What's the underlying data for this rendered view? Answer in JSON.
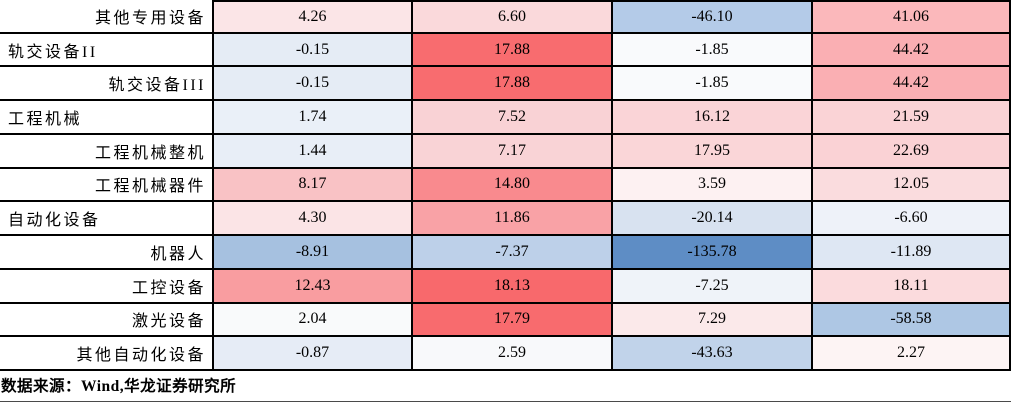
{
  "source_note": "数据来源：Wind,华龙证券研究所",
  "palette": {
    "strong_red": "#F8696C",
    "strong_blue": "#5E8DC5",
    "near_white": "#FCFCFF",
    "border": "#000000"
  },
  "table": {
    "rows": [
      {
        "label": "其他专用设备",
        "indent": true,
        "cells": [
          {
            "text": "4.26",
            "bg": "#FBE5E7"
          },
          {
            "text": "6.60",
            "bg": "#FAD9DB"
          },
          {
            "text": "-46.10",
            "bg": "#B4CBE8"
          },
          {
            "text": "41.06",
            "bg": "#FBB8BB"
          }
        ]
      },
      {
        "label": "轨交设备II",
        "indent": false,
        "cells": [
          {
            "text": "-0.15",
            "bg": "#E5ECF5"
          },
          {
            "text": "17.88",
            "bg": "#F86C6F"
          },
          {
            "text": "-1.85",
            "bg": "#F9FAFC"
          },
          {
            "text": "44.42",
            "bg": "#FAAFB3"
          }
        ]
      },
      {
        "label": "轨交设备III",
        "indent": true,
        "cells": [
          {
            "text": "-0.15",
            "bg": "#E5ECF5"
          },
          {
            "text": "17.88",
            "bg": "#F86C6F"
          },
          {
            "text": "-1.85",
            "bg": "#F9FAFC"
          },
          {
            "text": "44.42",
            "bg": "#FAAFB3"
          }
        ]
      },
      {
        "label": "工程机械",
        "indent": false,
        "cells": [
          {
            "text": "1.74",
            "bg": "#EAF0F8"
          },
          {
            "text": "7.52",
            "bg": "#F9D2D5"
          },
          {
            "text": "16.12",
            "bg": "#FAD4D7"
          },
          {
            "text": "21.59",
            "bg": "#FAD3D6"
          }
        ]
      },
      {
        "label": "工程机械整机",
        "indent": true,
        "cells": [
          {
            "text": "1.44",
            "bg": "#E8EEF7"
          },
          {
            "text": "7.17",
            "bg": "#F9D3D6"
          },
          {
            "text": "17.95",
            "bg": "#FAD6D8"
          },
          {
            "text": "22.69",
            "bg": "#FAD2D5"
          }
        ]
      },
      {
        "label": "工程机械器件",
        "indent": true,
        "cells": [
          {
            "text": "8.17",
            "bg": "#F9C2C5"
          },
          {
            "text": "14.80",
            "bg": "#F98A8E"
          },
          {
            "text": "3.59",
            "bg": "#FDF1F2"
          },
          {
            "text": "12.05",
            "bg": "#FADCDE"
          }
        ]
      },
      {
        "label": "自动化设备",
        "indent": false,
        "cells": [
          {
            "text": "4.30",
            "bg": "#FBE4E6"
          },
          {
            "text": "11.86",
            "bg": "#F9A2A6"
          },
          {
            "text": "-20.14",
            "bg": "#D8E2F0"
          },
          {
            "text": "-6.60",
            "bg": "#EEF2F9"
          }
        ]
      },
      {
        "label": "机器人",
        "indent": true,
        "cells": [
          {
            "text": "-8.91",
            "bg": "#A6C1E0"
          },
          {
            "text": "-7.37",
            "bg": "#BDD0E9"
          },
          {
            "text": "-135.78",
            "bg": "#5E8DC5"
          },
          {
            "text": "-11.89",
            "bg": "#DEE7F3"
          }
        ]
      },
      {
        "label": "工控设备",
        "indent": true,
        "cells": [
          {
            "text": "12.43",
            "bg": "#F99DA0"
          },
          {
            "text": "18.13",
            "bg": "#F8696C"
          },
          {
            "text": "-7.25",
            "bg": "#EFF3F9"
          },
          {
            "text": "18.11",
            "bg": "#FBDBDD"
          }
        ]
      },
      {
        "label": "激光设备",
        "indent": true,
        "cells": [
          {
            "text": "2.04",
            "bg": "#F9FAFB"
          },
          {
            "text": "17.79",
            "bg": "#F86B6E"
          },
          {
            "text": "7.29",
            "bg": "#FBE9EA"
          },
          {
            "text": "-58.58",
            "bg": "#AEC7E4"
          }
        ]
      },
      {
        "label": "其他自动化设备",
        "indent": true,
        "cells": [
          {
            "text": "-0.87",
            "bg": "#E6ECF6"
          },
          {
            "text": "2.59",
            "bg": "#F8F9FB"
          },
          {
            "text": "-43.63",
            "bg": "#C1D3EA"
          },
          {
            "text": "2.27",
            "bg": "#FDF4F4"
          }
        ]
      }
    ]
  },
  "chart_data": {
    "type": "heatmap",
    "rows": [
      "其他专用设备",
      "轨交设备II",
      "轨交设备III",
      "工程机械",
      "工程机械整机",
      "工程机械器件",
      "自动化设备",
      "机器人",
      "工控设备",
      "激光设备",
      "其他自动化设备"
    ],
    "values": [
      [
        4.26,
        6.6,
        -46.1,
        41.06
      ],
      [
        -0.15,
        17.88,
        -1.85,
        44.42
      ],
      [
        -0.15,
        17.88,
        -1.85,
        44.42
      ],
      [
        1.74,
        7.52,
        16.12,
        21.59
      ],
      [
        1.44,
        7.17,
        17.95,
        22.69
      ],
      [
        8.17,
        14.8,
        3.59,
        12.05
      ],
      [
        4.3,
        11.86,
        -20.14,
        -6.6
      ],
      [
        -8.91,
        -7.37,
        -135.78,
        -11.89
      ],
      [
        12.43,
        18.13,
        -7.25,
        18.11
      ],
      [
        2.04,
        17.79,
        7.29,
        -58.58
      ],
      [
        -0.87,
        2.59,
        -43.63,
        2.27
      ]
    ],
    "color_encoding": "diverging red-white-blue conditional formatting; red = high, blue = low, shaded per column",
    "source": "数据来源：Wind,华龙证券研究所",
    "layout": {
      "grid": true,
      "row_label_column": "left",
      "indented_rows_are_subcategories": true
    }
  }
}
